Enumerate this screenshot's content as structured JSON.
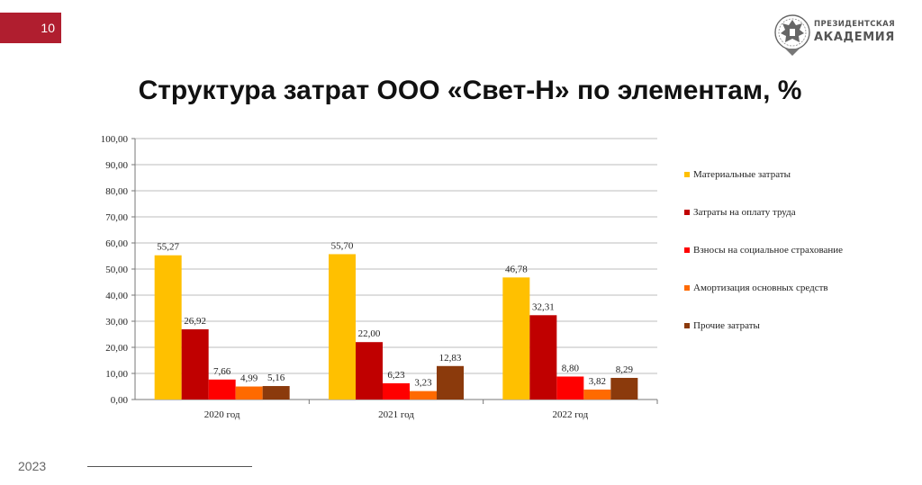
{
  "slide": {
    "page_number": "10",
    "title": "Структура затрат ООО «Свет-Н» по элементам, %",
    "footer_year": "2023"
  },
  "logo": {
    "line1": "ПРЕЗИДЕНТСКАЯ",
    "line2": "АКАДЕМИЯ"
  },
  "chart_data": {
    "type": "bar",
    "title": "",
    "xlabel": "",
    "ylabel": "",
    "categories": [
      "2020 год",
      "2021 год",
      "2022 год"
    ],
    "ylim": [
      0,
      100
    ],
    "yticks": [
      "0,00",
      "10,00",
      "20,00",
      "30,00",
      "40,00",
      "50,00",
      "60,00",
      "70,00",
      "80,00",
      "90,00",
      "100,00"
    ],
    "grid": true,
    "legend_position": "right",
    "series": [
      {
        "name": "Материальные затраты",
        "color": "#ffc000",
        "values": [
          55.27,
          55.7,
          46.78
        ],
        "labels": [
          "55,27",
          "55,70",
          "46,78"
        ]
      },
      {
        "name": "Затраты на оплату труда",
        "color": "#c00000",
        "values": [
          26.92,
          22.0,
          32.31
        ],
        "labels": [
          "26,92",
          "22,00",
          "32,31"
        ]
      },
      {
        "name": "Взносы на социальное страхование",
        "color": "#ff0000",
        "values": [
          7.66,
          6.23,
          8.8
        ],
        "labels": [
          "7,66",
          "6,23",
          "8,80"
        ]
      },
      {
        "name": "Амортизация основных средств",
        "color": "#ff6a00",
        "values": [
          4.99,
          3.23,
          3.82
        ],
        "labels": [
          "4,99",
          "3,23",
          "3,82"
        ]
      },
      {
        "name": "Прочие затраты",
        "color": "#8b3a0c",
        "values": [
          5.16,
          12.83,
          8.29
        ],
        "labels": [
          "5,16",
          "12,83",
          "8,29"
        ]
      }
    ]
  }
}
